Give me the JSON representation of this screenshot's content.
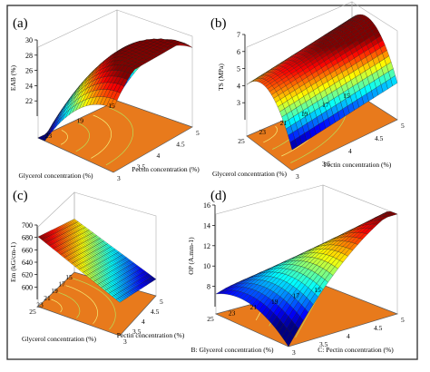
{
  "figure": {
    "caption": ""
  },
  "chart_data": [
    {
      "type": "surface3d",
      "panel_label": "(a)",
      "zlabel": "EAB (%)",
      "xlabel": "Glycerol concentration (%)",
      "ylabel": "Pectin concentration (%)",
      "x_ticks": [
        "15",
        "17",
        "19",
        "21",
        "23",
        "25"
      ],
      "y_ticks": [
        "3",
        "3.5",
        "4",
        "4.5",
        "5"
      ],
      "z_ticks": [
        "22",
        "24",
        "26",
        "28",
        "30"
      ],
      "zlim": [
        20,
        30
      ],
      "xlim": [
        15,
        25
      ],
      "ylim": [
        3,
        5
      ],
      "model": {
        "description": "quadratic response surface",
        "min": 20.5,
        "max": 29.5
      },
      "surface_colormap": "jet",
      "contour_floor_color": "#e87a1c"
    },
    {
      "type": "surface3d",
      "panel_label": "(b)",
      "zlabel": "TS (MPa)",
      "xlabel": "Glycerol concentration (%)",
      "ylabel": "Pectin concentration (%)",
      "x_ticks": [
        "15",
        "17",
        "19",
        "21",
        "23",
        "25"
      ],
      "y_ticks": [
        "3",
        "3.5",
        "4",
        "4.5",
        "5"
      ],
      "z_ticks": [
        "3",
        "4",
        "5",
        "6",
        "7"
      ],
      "zlim": [
        2,
        7
      ],
      "xlim": [
        15,
        25
      ],
      "ylim": [
        3,
        5
      ],
      "model": {
        "description": "quadratic response surface",
        "min": 3.2,
        "max": 6.2
      },
      "surface_colormap": "jet",
      "contour_floor_color": "#e87a1c"
    },
    {
      "type": "surface3d",
      "panel_label": "(c)",
      "zlabel": "Em (kG/cm-1)",
      "xlabel": "Glycerol concentration (%)",
      "ylabel": "Pectin concentration (%)",
      "x_ticks": [
        "15",
        "17",
        "19",
        "21",
        "23",
        "25"
      ],
      "y_ticks": [
        "3",
        "3.5",
        "4",
        "4.5",
        "5"
      ],
      "z_ticks": [
        "600",
        "620",
        "640",
        "660",
        "680",
        "700"
      ],
      "zlim": [
        580,
        700
      ],
      "xlim": [
        15,
        25
      ],
      "ylim": [
        3,
        5
      ],
      "model": {
        "description": "near-planar response surface",
        "min": 605,
        "max": 685
      },
      "surface_colormap": "jet",
      "contour_floor_color": "#e87a1c"
    },
    {
      "type": "surface3d",
      "panel_label": "(d)",
      "zlabel": "OP (A.mm-1)",
      "xlabel": "B: Glycerol concentration (%)",
      "ylabel": "C: Pectin concentration (%)",
      "x_ticks": [
        "15",
        "17",
        "19",
        "21",
        "23",
        "25"
      ],
      "y_ticks": [
        "3",
        "3.5",
        "4",
        "4.5",
        "5"
      ],
      "z_ticks": [
        "8",
        "10",
        "12",
        "14",
        "16"
      ],
      "zlim": [
        6,
        16
      ],
      "xlim": [
        15,
        25
      ],
      "ylim": [
        3,
        5
      ],
      "model": {
        "description": "saddle-shaped quadratic response surface",
        "min": 7.5,
        "max": 16
      },
      "surface_colormap": "jet",
      "contour_floor_color": "#e87a1c"
    }
  ]
}
